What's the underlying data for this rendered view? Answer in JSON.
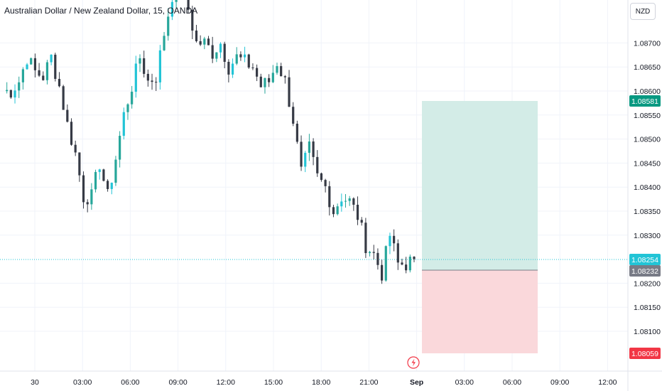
{
  "header": {
    "title": "Australian Dollar / New Zealand Dollar, 15, OANDA",
    "currency_button": "NZD"
  },
  "colors": {
    "up": "#26a69a",
    "up_bright": "#22c4d6",
    "down": "#363a45",
    "profit_zone": "#d3ece7",
    "loss_zone": "#fad8db",
    "badge_green": "#089981",
    "badge_gray": "#787b86",
    "badge_red": "#f23645",
    "badge_cyan": "#22c4d6",
    "last_price_line": "#22c4d6",
    "flash_icon": "#f23645"
  },
  "badges": {
    "target": "1.08581",
    "last": "1.08254",
    "entry": "1.08232",
    "stop": "1.08059"
  },
  "chart_data": {
    "type": "candlestick",
    "title": "Australian Dollar / New Zealand Dollar, 15, OANDA",
    "y_ticks": [
      "1.08100",
      "1.08150",
      "1.08200",
      "1.08300",
      "1.08350",
      "1.08400",
      "1.08450",
      "1.08500",
      "1.08550",
      "1.08600",
      "1.08650",
      "1.08700"
    ],
    "x_ticks": [
      "30",
      "03:00",
      "06:00",
      "09:00",
      "12:00",
      "15:00",
      "18:00",
      "21:00",
      "Sep",
      "03:00",
      "06:00",
      "09:00",
      "12:00"
    ],
    "ylim": [
      1.0805,
      1.0882
    ],
    "close_path": [
      1.086,
      1.086,
      1.0862,
      1.0867,
      1.0864,
      1.0863,
      1.0867,
      1.0861,
      1.0853,
      1.0847,
      1.0838,
      1.0838,
      1.0845,
      1.0838,
      1.0846,
      1.0855,
      1.0861,
      1.0867,
      1.0862,
      1.0863,
      1.0872,
      1.088,
      1.0883,
      1.0877,
      1.087,
      1.087,
      1.0868,
      1.087,
      1.0865,
      1.0867,
      1.0866,
      1.0865,
      1.0861,
      1.0862,
      1.0866,
      1.0862,
      1.0854,
      1.0843,
      1.0848,
      1.0842,
      1.084,
      1.0835,
      1.0838,
      1.0837,
      1.0834,
      1.0828,
      1.0826,
      1.0822,
      1.083,
      1.0824,
      1.0824,
      1.0825
    ],
    "trade": {
      "target": 1.08581,
      "entry": 1.08232,
      "stop": 1.08059,
      "last": 1.08254
    }
  }
}
